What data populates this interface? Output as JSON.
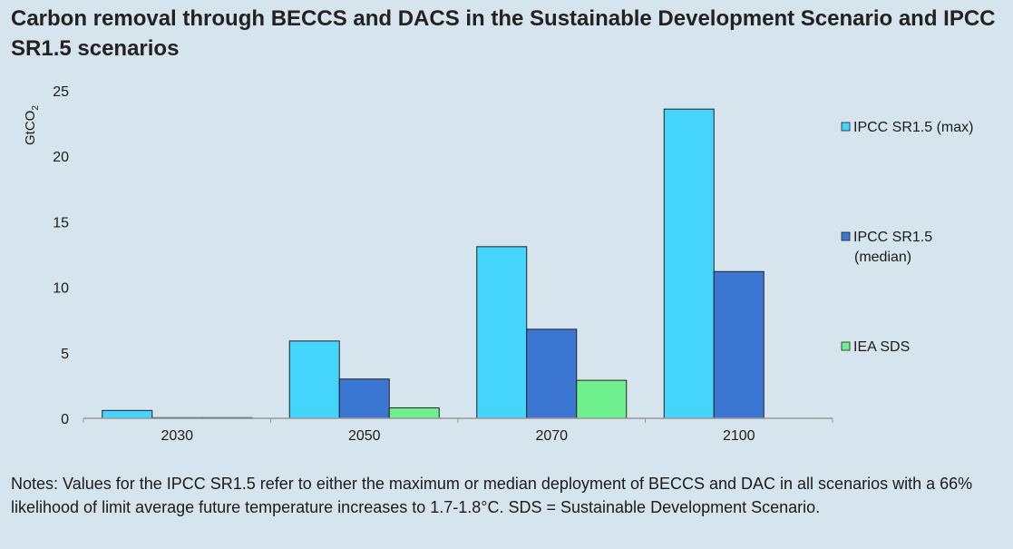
{
  "title": "Carbon removal through BECCS and DACS in the Sustainable Development Scenario and IPCC SR1.5 scenarios",
  "notes": "Notes: Values for the IPCC SR1.5 refer to either the maximum or median deployment of BECCS and DAC in all scenarios with a 66% likelihood of limit average future temperature increases to 1.7-1.8°C. SDS = Sustainable Development Scenario.",
  "chart_data": {
    "type": "bar",
    "ylabel_main": "GtCO",
    "ylabel_sub": "2",
    "categories": [
      "2030",
      "2050",
      "2070",
      "2100"
    ],
    "ylim": [
      0,
      25
    ],
    "yticks": [
      0,
      5,
      10,
      15,
      20,
      25
    ],
    "grid": false,
    "legend_position": "right",
    "series": [
      {
        "name": "IPCC SR1.5 (max)",
        "legend_lines": [
          "IPCC SR1.5 (max)"
        ],
        "color": "#45d4fb",
        "values": [
          0.6,
          5.9,
          13.1,
          23.6
        ]
      },
      {
        "name": "IPCC SR1.5 (median)",
        "legend_lines": [
          "IPCC SR1.5",
          "(median)"
        ],
        "color": "#3b76d3",
        "values": [
          0.05,
          3.0,
          6.8,
          11.2
        ]
      },
      {
        "name": "IEA SDS",
        "legend_lines": [
          "IEA SDS"
        ],
        "color": "#6ef08f",
        "values": [
          0.05,
          0.8,
          2.9,
          null
        ]
      }
    ]
  }
}
